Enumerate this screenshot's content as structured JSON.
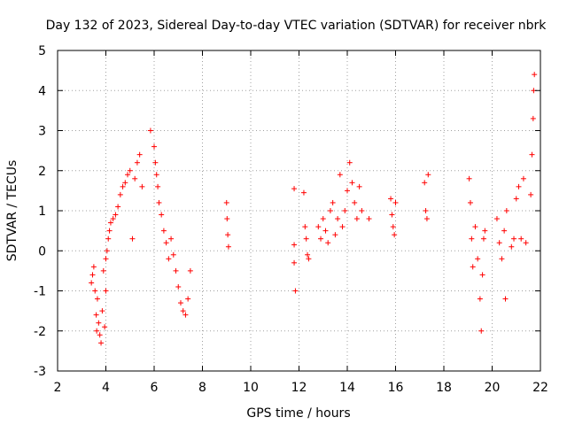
{
  "chart_data": {
    "type": "scatter",
    "title": "Day 132 of 2023, Sidereal Day-to-day VTEC variation (SDTVAR) for receiver nbrk",
    "xlabel": "GPS time / hours",
    "ylabel": "SDTVAR / TECUs",
    "xlim": [
      2,
      22
    ],
    "ylim": [
      -3,
      5
    ],
    "xticks": [
      2,
      4,
      6,
      8,
      10,
      12,
      14,
      16,
      18,
      20,
      22
    ],
    "yticks": [
      -3,
      -2,
      -1,
      0,
      1,
      2,
      3,
      4,
      5
    ],
    "xtick_labels": [
      "2",
      "4",
      "6",
      "8",
      "10",
      "12",
      "14",
      "16",
      "18",
      "20",
      "22"
    ],
    "ytick_labels": [
      "-3",
      "-2",
      "-1",
      "0",
      "1",
      "2",
      "3",
      "4",
      "5"
    ],
    "grid": true,
    "marker": "plus",
    "marker_color": "#ff0000",
    "series": [
      {
        "name": "SDTVAR",
        "points": [
          [
            3.4,
            -0.8
          ],
          [
            3.45,
            -0.6
          ],
          [
            3.5,
            -0.4
          ],
          [
            3.55,
            -1.0
          ],
          [
            3.6,
            -1.6
          ],
          [
            3.62,
            -2.0
          ],
          [
            3.65,
            -1.2
          ],
          [
            3.7,
            -1.8
          ],
          [
            3.75,
            -2.1
          ],
          [
            3.8,
            -2.3
          ],
          [
            3.85,
            -1.5
          ],
          [
            3.9,
            -0.5
          ],
          [
            3.95,
            -1.9
          ],
          [
            4.0,
            -1.0
          ],
          [
            4.0,
            -0.2
          ],
          [
            4.05,
            0.0
          ],
          [
            4.1,
            0.3
          ],
          [
            4.15,
            0.5
          ],
          [
            4.2,
            0.7
          ],
          [
            4.3,
            0.8
          ],
          [
            4.4,
            0.9
          ],
          [
            4.5,
            1.1
          ],
          [
            4.6,
            1.4
          ],
          [
            4.7,
            1.6
          ],
          [
            4.8,
            1.7
          ],
          [
            4.9,
            1.9
          ],
          [
            5.0,
            2.0
          ],
          [
            5.1,
            0.3
          ],
          [
            5.2,
            1.8
          ],
          [
            5.3,
            2.2
          ],
          [
            5.4,
            2.4
          ],
          [
            5.5,
            1.6
          ],
          [
            5.85,
            3.0
          ],
          [
            6.0,
            2.6
          ],
          [
            6.05,
            2.2
          ],
          [
            6.1,
            1.9
          ],
          [
            6.15,
            1.6
          ],
          [
            6.2,
            1.2
          ],
          [
            6.3,
            0.9
          ],
          [
            6.4,
            0.5
          ],
          [
            6.5,
            0.2
          ],
          [
            6.6,
            -0.2
          ],
          [
            6.7,
            0.3
          ],
          [
            6.8,
            -0.1
          ],
          [
            6.9,
            -0.5
          ],
          [
            7.0,
            -0.9
          ],
          [
            7.1,
            -1.3
          ],
          [
            7.2,
            -1.5
          ],
          [
            7.3,
            -1.6
          ],
          [
            7.4,
            -1.2
          ],
          [
            7.5,
            -0.5
          ],
          [
            9.0,
            1.2
          ],
          [
            9.02,
            0.8
          ],
          [
            9.05,
            0.4
          ],
          [
            9.08,
            0.1
          ],
          [
            11.8,
            1.55
          ],
          [
            11.8,
            0.15
          ],
          [
            11.8,
            -0.3
          ],
          [
            11.85,
            -1.0
          ],
          [
            12.2,
            1.45
          ],
          [
            12.25,
            0.6
          ],
          [
            12.3,
            0.3
          ],
          [
            12.35,
            -0.1
          ],
          [
            12.4,
            -0.2
          ],
          [
            12.8,
            0.6
          ],
          [
            12.9,
            0.3
          ],
          [
            13.0,
            0.8
          ],
          [
            13.1,
            0.5
          ],
          [
            13.2,
            0.2
          ],
          [
            13.3,
            1.0
          ],
          [
            13.4,
            1.2
          ],
          [
            13.5,
            0.4
          ],
          [
            13.6,
            0.8
          ],
          [
            13.7,
            1.9
          ],
          [
            13.8,
            0.6
          ],
          [
            13.9,
            1.0
          ],
          [
            14.0,
            1.5
          ],
          [
            14.1,
            2.2
          ],
          [
            14.2,
            1.7
          ],
          [
            14.3,
            1.2
          ],
          [
            14.4,
            0.8
          ],
          [
            14.5,
            1.6
          ],
          [
            14.6,
            1.0
          ],
          [
            14.9,
            0.8
          ],
          [
            15.8,
            1.3
          ],
          [
            15.85,
            0.9
          ],
          [
            15.9,
            0.6
          ],
          [
            15.95,
            0.4
          ],
          [
            16.0,
            1.2
          ],
          [
            17.2,
            1.7
          ],
          [
            17.25,
            1.0
          ],
          [
            17.3,
            0.8
          ],
          [
            17.35,
            1.9
          ],
          [
            19.05,
            1.8
          ],
          [
            19.1,
            1.2
          ],
          [
            19.15,
            0.3
          ],
          [
            19.2,
            -0.4
          ],
          [
            19.3,
            0.6
          ],
          [
            19.4,
            -0.2
          ],
          [
            19.5,
            -1.2
          ],
          [
            19.55,
            -2.0
          ],
          [
            19.6,
            -0.6
          ],
          [
            19.65,
            0.3
          ],
          [
            19.7,
            0.5
          ],
          [
            20.2,
            0.8
          ],
          [
            20.3,
            0.2
          ],
          [
            20.4,
            -0.2
          ],
          [
            20.5,
            0.5
          ],
          [
            20.55,
            -1.2
          ],
          [
            20.6,
            1.0
          ],
          [
            20.8,
            0.1
          ],
          [
            20.9,
            0.3
          ],
          [
            21.0,
            1.3
          ],
          [
            21.1,
            1.6
          ],
          [
            21.2,
            0.3
          ],
          [
            21.3,
            1.8
          ],
          [
            21.4,
            0.2
          ],
          [
            21.6,
            1.4
          ],
          [
            21.65,
            2.4
          ],
          [
            21.7,
            3.3
          ],
          [
            21.72,
            4.0
          ],
          [
            21.75,
            4.4
          ]
        ]
      }
    ]
  }
}
